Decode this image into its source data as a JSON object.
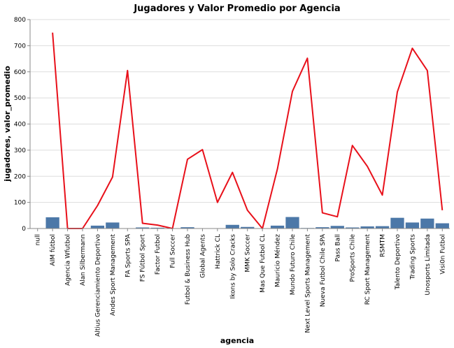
{
  "chart_data": {
    "type": "bar",
    "title": "Jugadores y Valor Promedio por Agencia",
    "xlabel": "agencia",
    "ylabel": "jugadores, valor_promedio",
    "ylim": [
      0,
      800
    ],
    "yticks": [
      0,
      100,
      200,
      300,
      400,
      500,
      600,
      700,
      800
    ],
    "grid": true,
    "categories": [
      "null",
      "AIM fútbol",
      "Agencia Wfutbol",
      "Alan Silbermann",
      "Altius Gerenciamiento Deportivo",
      "Andes Sport Management",
      "FA Sports SPA",
      "FS Fútbol Sport",
      "Factor Futbol",
      "Full Soccer",
      "Futbol & Business Hub",
      "Global Agents",
      "Hattrick CL",
      "Ikons by Solo Cracks",
      "MMK Soccer",
      "Mas Que Futbol CL",
      "Mauricio Méndez",
      "Mundo Futuro Chile",
      "Next Level Sports Management",
      "Nueva Futbol Chile SPA",
      "Pass Ball",
      "ProSports Chile",
      "RC Sport Management",
      "RSMTM",
      "Talento Deportivo",
      "Trading Sports",
      "Unosports Limitada",
      "Visi0n Futbol"
    ],
    "series": [
      {
        "name": "jugadores",
        "type": "bar",
        "color": "#4c78a8",
        "values": [
          0,
          43,
          0,
          0,
          11,
          23,
          1,
          4,
          3,
          1,
          5,
          1,
          1,
          14,
          6,
          1,
          11,
          44,
          2,
          5,
          10,
          4,
          8,
          9,
          41,
          23,
          38,
          20
        ]
      },
      {
        "name": "valor_promedio",
        "type": "line",
        "color": "#e8101a",
        "values": [
          null,
          750,
          0,
          0,
          88,
          197,
          605,
          20,
          13,
          0,
          265,
          302,
          100,
          215,
          70,
          0,
          228,
          525,
          652,
          60,
          45,
          318,
          238,
          128,
          523,
          690,
          605,
          70
        ]
      }
    ]
  }
}
